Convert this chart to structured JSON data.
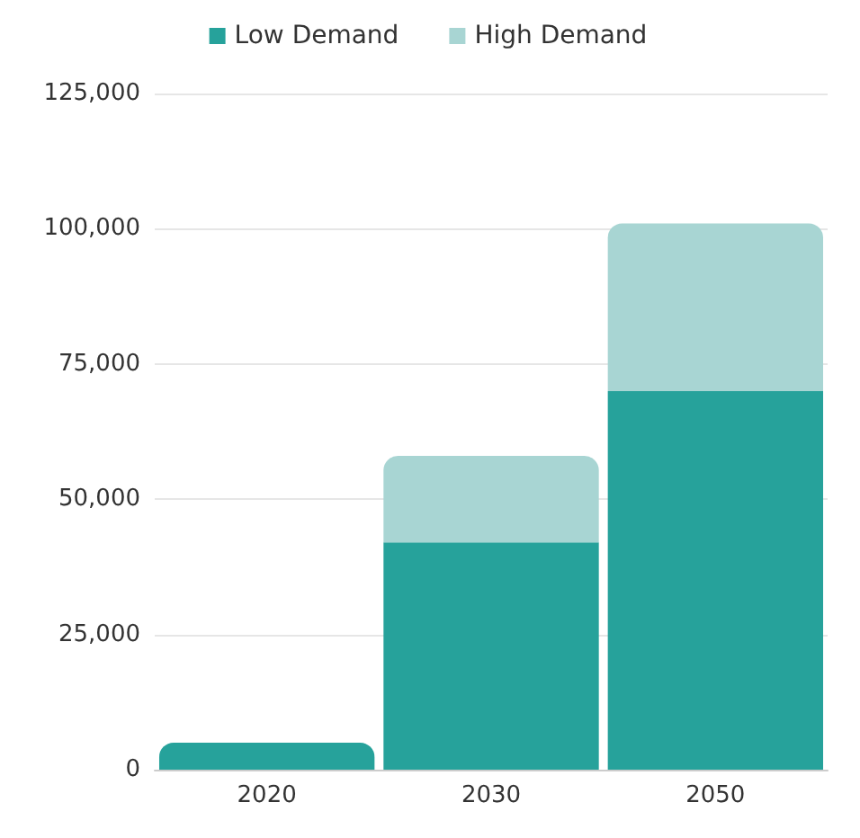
{
  "chart_data": {
    "type": "bar",
    "stacked": true,
    "categories": [
      "2020",
      "2030",
      "2050"
    ],
    "series": [
      {
        "name": "Low Demand",
        "color": "#26a29b",
        "values": [
          5000,
          42000,
          70000
        ]
      },
      {
        "name": "High Demand",
        "color": "#a8d5d3",
        "values": [
          null,
          16000,
          31000
        ]
      }
    ],
    "ylim": [
      0,
      125000
    ],
    "yticks": [
      0,
      {
        "value": 25000,
        "label": "25,000"
      },
      {
        "value": 50000,
        "label": "50,000"
      },
      {
        "value": 75000,
        "label": "75,000"
      },
      {
        "value": 100000,
        "label": "100,000"
      },
      {
        "value": 125000,
        "label": "125,000"
      }
    ],
    "grid": "y",
    "legend": "top"
  }
}
